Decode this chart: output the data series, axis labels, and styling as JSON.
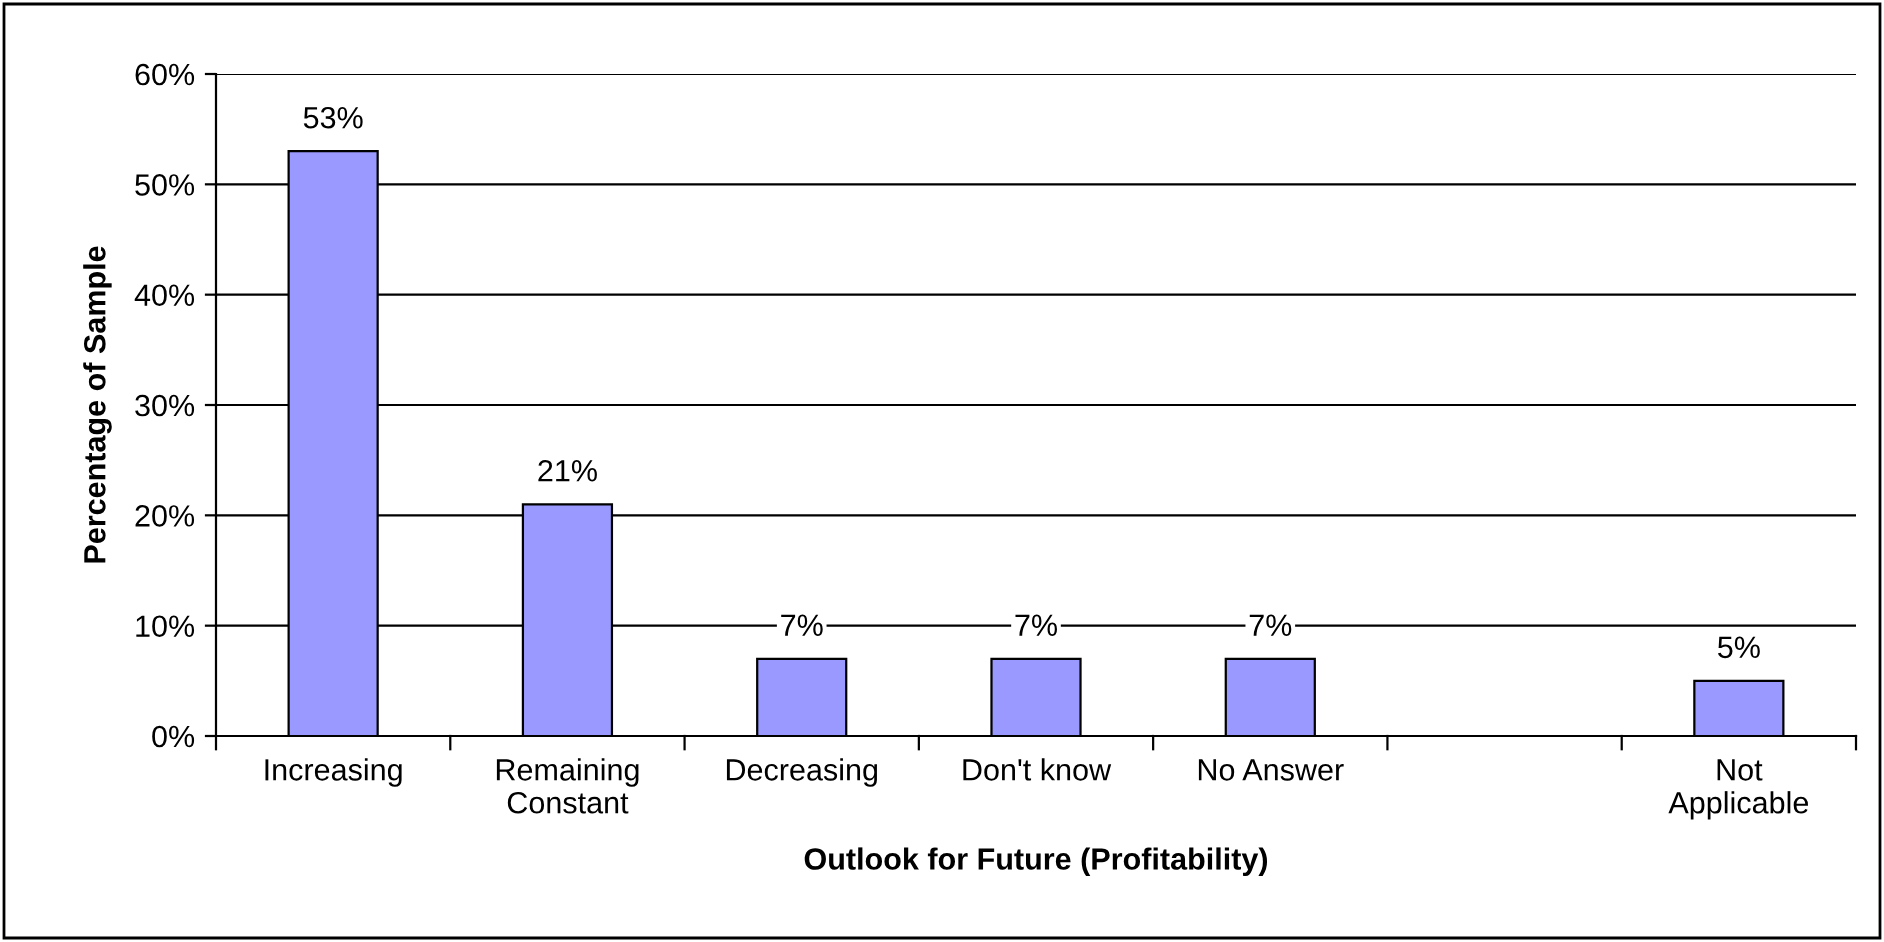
{
  "chart_data": {
    "type": "bar",
    "xlabel": "Outlook for Future (Profitability)",
    "ylabel": "Percentage of Sample",
    "categories": [
      "Increasing",
      "Remaining\nConstant",
      "Decreasing",
      "Don't know",
      "No Answer",
      null,
      "Not\nApplicable"
    ],
    "values": [
      53,
      21,
      7,
      7,
      7,
      null,
      5
    ],
    "value_labels": [
      "53%",
      "21%",
      "7%",
      "7%",
      "7%",
      null,
      "5%"
    ],
    "color": "#9999ff",
    "ylim": [
      0,
      60
    ],
    "yticks": [
      {
        "value": 0,
        "label": "0%"
      },
      {
        "value": 10,
        "label": "10%"
      },
      {
        "value": 20,
        "label": "20%"
      },
      {
        "value": 30,
        "label": "30%"
      },
      {
        "value": 40,
        "label": "40%"
      },
      {
        "value": 50,
        "label": "50%"
      },
      {
        "value": 60,
        "label": "60%"
      }
    ],
    "grid": "y"
  }
}
